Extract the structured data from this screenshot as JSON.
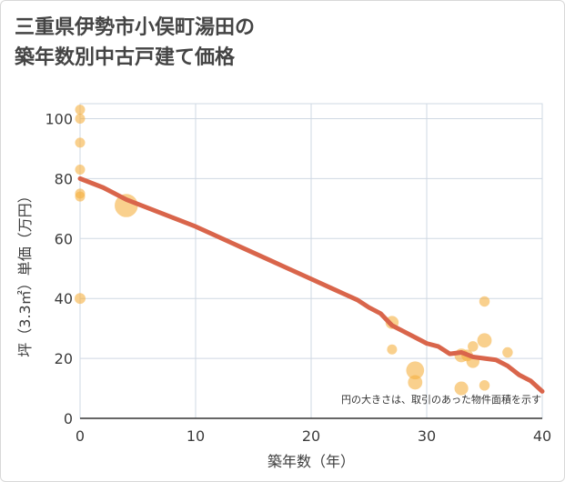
{
  "title_lines": [
    "三重県伊勢市小俣町湯田の",
    "築年数別中古戸建て価格"
  ],
  "chart_data": {
    "type": "scatter",
    "title": "三重県伊勢市小俣町湯田の築年数別中古戸建て価格",
    "xlabel": "築年数（年）",
    "ylabel": "坪（3.3㎡）単価（万円）",
    "xlim": [
      0,
      40
    ],
    "ylim": [
      0,
      105
    ],
    "xticks": [
      0,
      10,
      20,
      30,
      40
    ],
    "yticks": [
      0,
      20,
      40,
      60,
      80,
      100
    ],
    "grid": true,
    "note": "円の大きさは、取引のあった物件面積を示す",
    "colors": {
      "bubble": "#f5b041",
      "trend": "#d9654b",
      "grid": "#cfd8e3"
    },
    "points": [
      {
        "x": 0,
        "y": 103,
        "size": 1
      },
      {
        "x": 0,
        "y": 100,
        "size": 1
      },
      {
        "x": 0,
        "y": 92,
        "size": 1
      },
      {
        "x": 0,
        "y": 83,
        "size": 1
      },
      {
        "x": 0,
        "y": 75,
        "size": 1
      },
      {
        "x": 0,
        "y": 74,
        "size": 1
      },
      {
        "x": 0,
        "y": 40,
        "size": 1.2
      },
      {
        "x": 4,
        "y": 71,
        "size": 6
      },
      {
        "x": 27,
        "y": 32,
        "size": 1.8
      },
      {
        "x": 27,
        "y": 23,
        "size": 1
      },
      {
        "x": 29,
        "y": 16,
        "size": 3.5
      },
      {
        "x": 29,
        "y": 12,
        "size": 2.2
      },
      {
        "x": 33,
        "y": 21,
        "size": 2
      },
      {
        "x": 33,
        "y": 10,
        "size": 2
      },
      {
        "x": 33.5,
        "y": 21,
        "size": 1.4
      },
      {
        "x": 34,
        "y": 19,
        "size": 1.8
      },
      {
        "x": 34,
        "y": 24,
        "size": 1.1
      },
      {
        "x": 35,
        "y": 39,
        "size": 1.1
      },
      {
        "x": 35,
        "y": 26,
        "size": 2.2
      },
      {
        "x": 35,
        "y": 11,
        "size": 1.1
      },
      {
        "x": 37,
        "y": 22,
        "size": 1.1
      }
    ],
    "trend": {
      "x": [
        0,
        2,
        4,
        6,
        8,
        10,
        12,
        14,
        16,
        18,
        20,
        22,
        24,
        25,
        26,
        27,
        28,
        29,
        30,
        31,
        32,
        33,
        34,
        35,
        36,
        37,
        38,
        39,
        40
      ],
      "y": [
        80,
        77,
        73,
        70,
        67,
        64,
        60.5,
        57,
        53.5,
        50,
        46.5,
        43,
        39.5,
        37,
        35,
        31,
        29,
        27,
        25,
        24,
        21.5,
        22,
        20.5,
        20,
        19.5,
        17.5,
        14.5,
        12.5,
        9
      ]
    }
  }
}
